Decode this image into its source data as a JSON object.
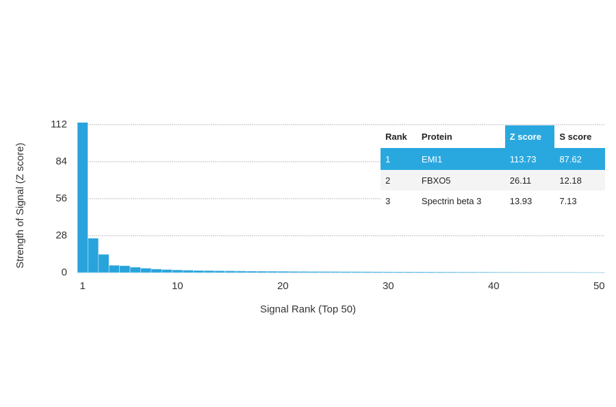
{
  "chart_data": {
    "type": "bar",
    "x_label": "Signal Rank (Top 50)",
    "y_label": "Strength of Signal (Z score)",
    "x": [
      1,
      2,
      3,
      4,
      5,
      6,
      7,
      8,
      9,
      10,
      11,
      12,
      13,
      14,
      15,
      16,
      17,
      18,
      19,
      20,
      21,
      22,
      23,
      24,
      25,
      26,
      27,
      28,
      29,
      30,
      31,
      32,
      33,
      34,
      35,
      36,
      37,
      38,
      39,
      40,
      41,
      42,
      43,
      44,
      45,
      46,
      47,
      48,
      49,
      50
    ],
    "values": [
      113.73,
      26.11,
      13.93,
      5.6,
      5.3,
      4.2,
      3.4,
      2.8,
      2.4,
      2.1,
      1.9,
      1.7,
      1.6,
      1.5,
      1.4,
      1.3,
      1.2,
      1.15,
      1.1,
      1.05,
      1.0,
      0.95,
      0.9,
      0.88,
      0.85,
      0.82,
      0.8,
      0.78,
      0.75,
      0.72,
      0.7,
      0.68,
      0.66,
      0.64,
      0.62,
      0.6,
      0.58,
      0.56,
      0.54,
      0.52,
      0.5,
      0.49,
      0.48,
      0.47,
      0.46,
      0.45,
      0.44,
      0.43,
      0.42,
      0.41
    ],
    "color": "#29a3dc",
    "xlim": [
      0.5,
      50.5
    ],
    "xticks": [
      1,
      10,
      20,
      30,
      40,
      50
    ],
    "ylim": [
      0,
      112
    ],
    "yticks": [
      0,
      28,
      56,
      84,
      112
    ],
    "grid": true
  },
  "table": {
    "columns": [
      "Rank",
      "Protein",
      "Z score",
      "S score"
    ],
    "rows": [
      [
        1,
        "EMI1",
        113.73,
        87.62
      ],
      [
        2,
        "FBXO5",
        26.11,
        12.18
      ],
      [
        3,
        "Spectrin beta 3",
        13.93,
        7.13
      ]
    ]
  }
}
